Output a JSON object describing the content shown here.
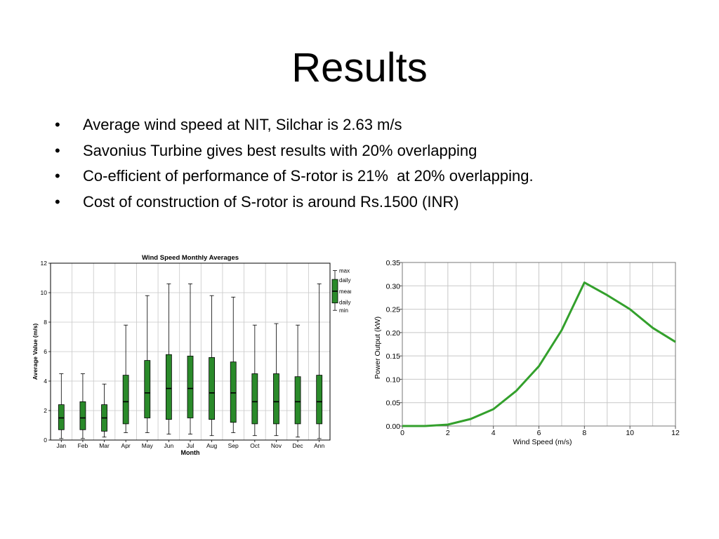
{
  "slide": {
    "title": "Results",
    "bullet_marker": "•",
    "bullets": [
      "Average wind speed at NIT, Silchar is 2.63 m/s",
      "Savonius Turbine gives best results with 20% overlapping",
      "Co-efficient of performance of S-rotor is 21%  at 20% overlapping.",
      "Cost of construction of S-rotor is around Rs.1500 (INR)"
    ]
  },
  "colors": {
    "box_fill": "#2a8a2a",
    "line": "#33a02c",
    "grid": "#c8c8c8"
  },
  "chart_data": [
    {
      "type": "box",
      "title": "Wind Speed Monthly Averages",
      "xlabel": "Month",
      "ylabel": "Average Value (m/s)",
      "ylim": [
        0,
        12
      ],
      "yticks": [
        0,
        2,
        4,
        6,
        8,
        10,
        12
      ],
      "grid": true,
      "legend_position": "top-right",
      "legend": [
        "max",
        "daily high",
        "mean",
        "daily low",
        "min"
      ],
      "categories": [
        "Jan",
        "Feb",
        "Mar",
        "Apr",
        "May",
        "Jun",
        "Jul",
        "Aug",
        "Sep",
        "Oct",
        "Nov",
        "Dec",
        "Ann"
      ],
      "max": [
        4.5,
        4.5,
        3.8,
        7.8,
        9.8,
        10.6,
        10.6,
        9.8,
        9.7,
        7.8,
        7.9,
        7.8,
        10.6
      ],
      "daily_high": [
        2.4,
        2.6,
        2.4,
        4.4,
        5.4,
        5.8,
        5.7,
        5.6,
        5.3,
        4.5,
        4.5,
        4.3,
        4.4
      ],
      "mean": [
        1.5,
        1.5,
        1.5,
        2.6,
        3.2,
        3.5,
        3.5,
        3.2,
        3.2,
        2.6,
        2.6,
        2.6,
        2.6
      ],
      "daily_low": [
        0.7,
        0.7,
        0.6,
        1.1,
        1.5,
        1.4,
        1.5,
        1.4,
        1.2,
        1.1,
        1.1,
        1.1,
        1.1
      ],
      "min": [
        0.1,
        0.1,
        0.2,
        0.5,
        0.5,
        0.4,
        0.4,
        0.3,
        0.5,
        0.3,
        0.3,
        0.2,
        0.1
      ]
    },
    {
      "type": "line",
      "xlabel": "Wind Speed (m/s)",
      "ylabel": "Power Output (kW)",
      "xlim": [
        0,
        12
      ],
      "ylim": [
        0,
        0.35
      ],
      "xticks": [
        "0",
        "2",
        "4",
        "6",
        "8",
        "10",
        "12"
      ],
      "yticks": [
        "0.00",
        "0.05",
        "0.10",
        "0.15",
        "0.20",
        "0.25",
        "0.30",
        "0.35"
      ],
      "grid": true,
      "x": [
        0,
        1,
        2,
        3,
        4,
        5,
        6,
        7,
        8,
        9,
        10,
        11,
        12
      ],
      "y": [
        0,
        0,
        0.003,
        0.015,
        0.036,
        0.075,
        0.128,
        0.205,
        0.307,
        0.28,
        0.25,
        0.21,
        0.18
      ]
    }
  ]
}
